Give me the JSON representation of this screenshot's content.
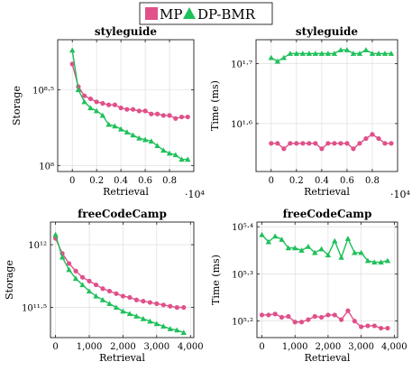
{
  "legend": {
    "items": [
      {
        "label": "MP",
        "color": "#e0508a",
        "marker": "circle"
      },
      {
        "label": "DP-BMR",
        "color": "#1fc05a",
        "marker": "triangle"
      }
    ]
  },
  "chart_data": [
    {
      "type": "line",
      "title": "styleguide",
      "xlabel": "Retrieval",
      "ylabel": "Storage",
      "x_multiplier_label": "·10⁴",
      "xlim": [
        -0.12,
        1.0
      ],
      "ylim": [
        7.96,
        8.83
      ],
      "y_log_scale": true,
      "x_ticks": [
        {
          "value": 0,
          "label": "0"
        },
        {
          "value": 0.2,
          "label": "0.2"
        },
        {
          "value": 0.4,
          "label": "0.4"
        },
        {
          "value": 0.6,
          "label": "0.6"
        },
        {
          "value": 0.8,
          "label": "0.8"
        }
      ],
      "y_ticks": [
        {
          "value": 8,
          "label": "10⁸"
        },
        {
          "value": 8.5,
          "label": "10⁸·⁵"
        }
      ],
      "grid": true,
      "x": [
        0,
        0.05,
        0.1,
        0.15,
        0.2,
        0.25,
        0.3,
        0.35,
        0.4,
        0.45,
        0.5,
        0.55,
        0.6,
        0.65,
        0.7,
        0.75,
        0.8,
        0.85,
        0.9,
        0.95
      ],
      "series": [
        {
          "name": "MP",
          "values": [
            8.67,
            8.52,
            8.46,
            8.44,
            8.42,
            8.41,
            8.4,
            8.4,
            8.38,
            8.37,
            8.37,
            8.36,
            8.36,
            8.34,
            8.34,
            8.33,
            8.33,
            8.31,
            8.32,
            8.32
          ]
        },
        {
          "name": "DP-BMR",
          "values": [
            8.76,
            8.5,
            8.42,
            8.38,
            8.36,
            8.33,
            8.27,
            8.26,
            8.24,
            8.22,
            8.2,
            8.18,
            8.17,
            8.16,
            8.13,
            8.1,
            8.08,
            8.07,
            8.04,
            8.04
          ]
        }
      ]
    },
    {
      "type": "line",
      "title": "styleguide",
      "xlabel": "Retrieval",
      "ylabel": "Time (ms)",
      "x_multiplier_label": "·10⁴",
      "xlim": [
        -0.12,
        1.0
      ],
      "ylim": [
        1.52,
        1.74
      ],
      "y_log_scale": true,
      "x_ticks": [
        {
          "value": 0,
          "label": "0"
        },
        {
          "value": 0.2,
          "label": "0.2"
        },
        {
          "value": 0.4,
          "label": "0.4"
        },
        {
          "value": 0.6,
          "label": "0.6"
        },
        {
          "value": 0.8,
          "label": "0.8"
        }
      ],
      "y_ticks": [
        {
          "value": 1.6,
          "label": "10¹·⁶"
        },
        {
          "value": 1.7,
          "label": "10¹·⁷"
        }
      ],
      "grid": true,
      "x": [
        0,
        0.05,
        0.1,
        0.15,
        0.2,
        0.25,
        0.3,
        0.35,
        0.4,
        0.45,
        0.5,
        0.55,
        0.6,
        0.65,
        0.7,
        0.75,
        0.8,
        0.85,
        0.9,
        0.95
      ],
      "series": [
        {
          "name": "MP",
          "values": [
            1.567,
            1.567,
            1.558,
            1.567,
            1.567,
            1.567,
            1.567,
            1.567,
            1.558,
            1.567,
            1.567,
            1.567,
            1.567,
            1.558,
            1.567,
            1.575,
            1.582,
            1.575,
            1.567,
            1.567
          ]
        },
        {
          "name": "DP-BMR",
          "values": [
            1.71,
            1.704,
            1.71,
            1.717,
            1.717,
            1.717,
            1.717,
            1.717,
            1.717,
            1.717,
            1.717,
            1.723,
            1.723,
            1.717,
            1.717,
            1.723,
            1.717,
            1.717,
            1.717,
            1.717
          ]
        }
      ]
    },
    {
      "type": "line",
      "title": "freeCodeCamp",
      "xlabel": "Retrieval",
      "ylabel": "Storage",
      "xlim": [
        -150,
        4100
      ],
      "ylim": [
        11.26,
        12.18
      ],
      "y_log_scale": true,
      "x_ticks": [
        {
          "value": 0,
          "label": "0"
        },
        {
          "value": 1000,
          "label": "1,000"
        },
        {
          "value": 2000,
          "label": "2,000"
        },
        {
          "value": 3000,
          "label": "3,000"
        },
        {
          "value": 4000,
          "label": "4,000"
        }
      ],
      "y_ticks": [
        {
          "value": 11.5,
          "label": "10¹¹·⁵"
        },
        {
          "value": 12,
          "label": "10¹²"
        }
      ],
      "grid": true,
      "x": [
        0,
        200,
        400,
        600,
        800,
        1000,
        1200,
        1400,
        1600,
        1800,
        2000,
        2200,
        2400,
        2600,
        2800,
        3000,
        3200,
        3400,
        3600,
        3800
      ],
      "series": [
        {
          "name": "MP",
          "values": [
            12.05,
            11.93,
            11.85,
            11.79,
            11.74,
            11.71,
            11.68,
            11.65,
            11.63,
            11.61,
            11.59,
            11.58,
            11.56,
            11.55,
            11.54,
            11.53,
            11.52,
            11.51,
            11.5,
            11.5
          ]
        },
        {
          "name": "DP-BMR",
          "values": [
            12.08,
            11.9,
            11.8,
            11.73,
            11.68,
            11.63,
            11.59,
            11.56,
            11.53,
            11.5,
            11.47,
            11.45,
            11.43,
            11.41,
            11.39,
            11.37,
            11.35,
            11.33,
            11.32,
            11.3
          ]
        }
      ]
    },
    {
      "type": "line",
      "title": "freeCodeCamp",
      "xlabel": "Retrieval",
      "ylabel": "Time (ms)",
      "xlim": [
        -150,
        4100
      ],
      "ylim": [
        5.165,
        5.41
      ],
      "y_log_scale": true,
      "x_ticks": [
        {
          "value": 0,
          "label": "0"
        },
        {
          "value": 1000,
          "label": "1,000"
        },
        {
          "value": 2000,
          "label": "2,000"
        },
        {
          "value": 3000,
          "label": "3,000"
        },
        {
          "value": 4000,
          "label": "4,000"
        }
      ],
      "y_ticks": [
        {
          "value": 5.2,
          "label": "10⁵·²"
        },
        {
          "value": 5.3,
          "label": "10⁵·³"
        },
        {
          "value": 5.4,
          "label": "10⁵·⁴"
        }
      ],
      "grid": true,
      "x": [
        0,
        200,
        400,
        600,
        800,
        1000,
        1200,
        1400,
        1600,
        1800,
        2000,
        2200,
        2400,
        2600,
        2800,
        3000,
        3200,
        3400,
        3600,
        3800
      ],
      "series": [
        {
          "name": "MP",
          "values": [
            5.213,
            5.213,
            5.215,
            5.208,
            5.21,
            5.198,
            5.198,
            5.203,
            5.21,
            5.208,
            5.213,
            5.213,
            5.203,
            5.222,
            5.2,
            5.188,
            5.19,
            5.19,
            5.185,
            5.185
          ]
        },
        {
          "name": "DP-BMR",
          "values": [
            5.383,
            5.368,
            5.38,
            5.373,
            5.355,
            5.355,
            5.35,
            5.358,
            5.345,
            5.353,
            5.34,
            5.37,
            5.335,
            5.375,
            5.345,
            5.345,
            5.328,
            5.325,
            5.325,
            5.328
          ]
        }
      ]
    }
  ]
}
